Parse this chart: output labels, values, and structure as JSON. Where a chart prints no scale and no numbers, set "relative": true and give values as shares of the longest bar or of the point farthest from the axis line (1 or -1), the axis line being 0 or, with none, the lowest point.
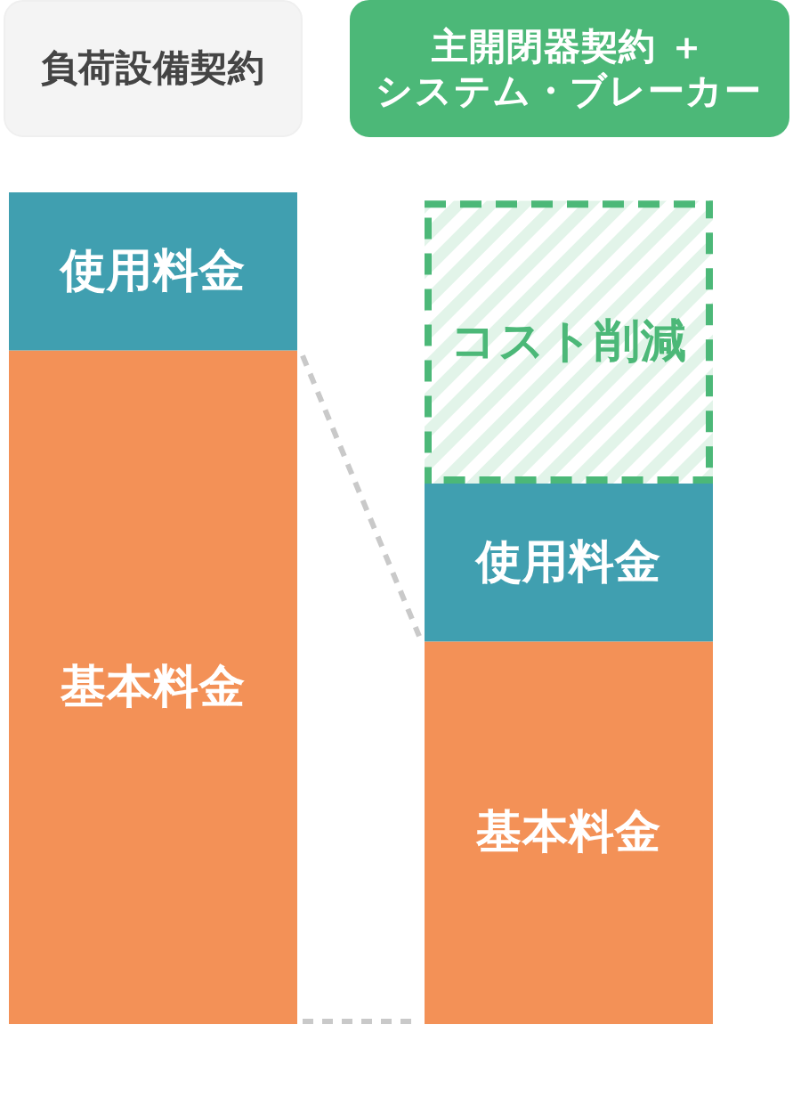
{
  "chart_data": {
    "type": "bar",
    "stacked": true,
    "relative": true,
    "categories": [
      "負荷設備契約",
      "主開閉器契約 ＋システム・ブレーカー"
    ],
    "series": [
      {
        "name": "基本料金",
        "color": "#f39157",
        "values": [
          0.81,
          0.46
        ]
      },
      {
        "name": "使用料金",
        "color": "#409fb0",
        "values": [
          0.19,
          0.19
        ]
      },
      {
        "name": "コスト削減",
        "color": "#4cb878",
        "values": [
          null,
          0.34
        ],
        "line_style": "dashed"
      }
    ]
  }
}
